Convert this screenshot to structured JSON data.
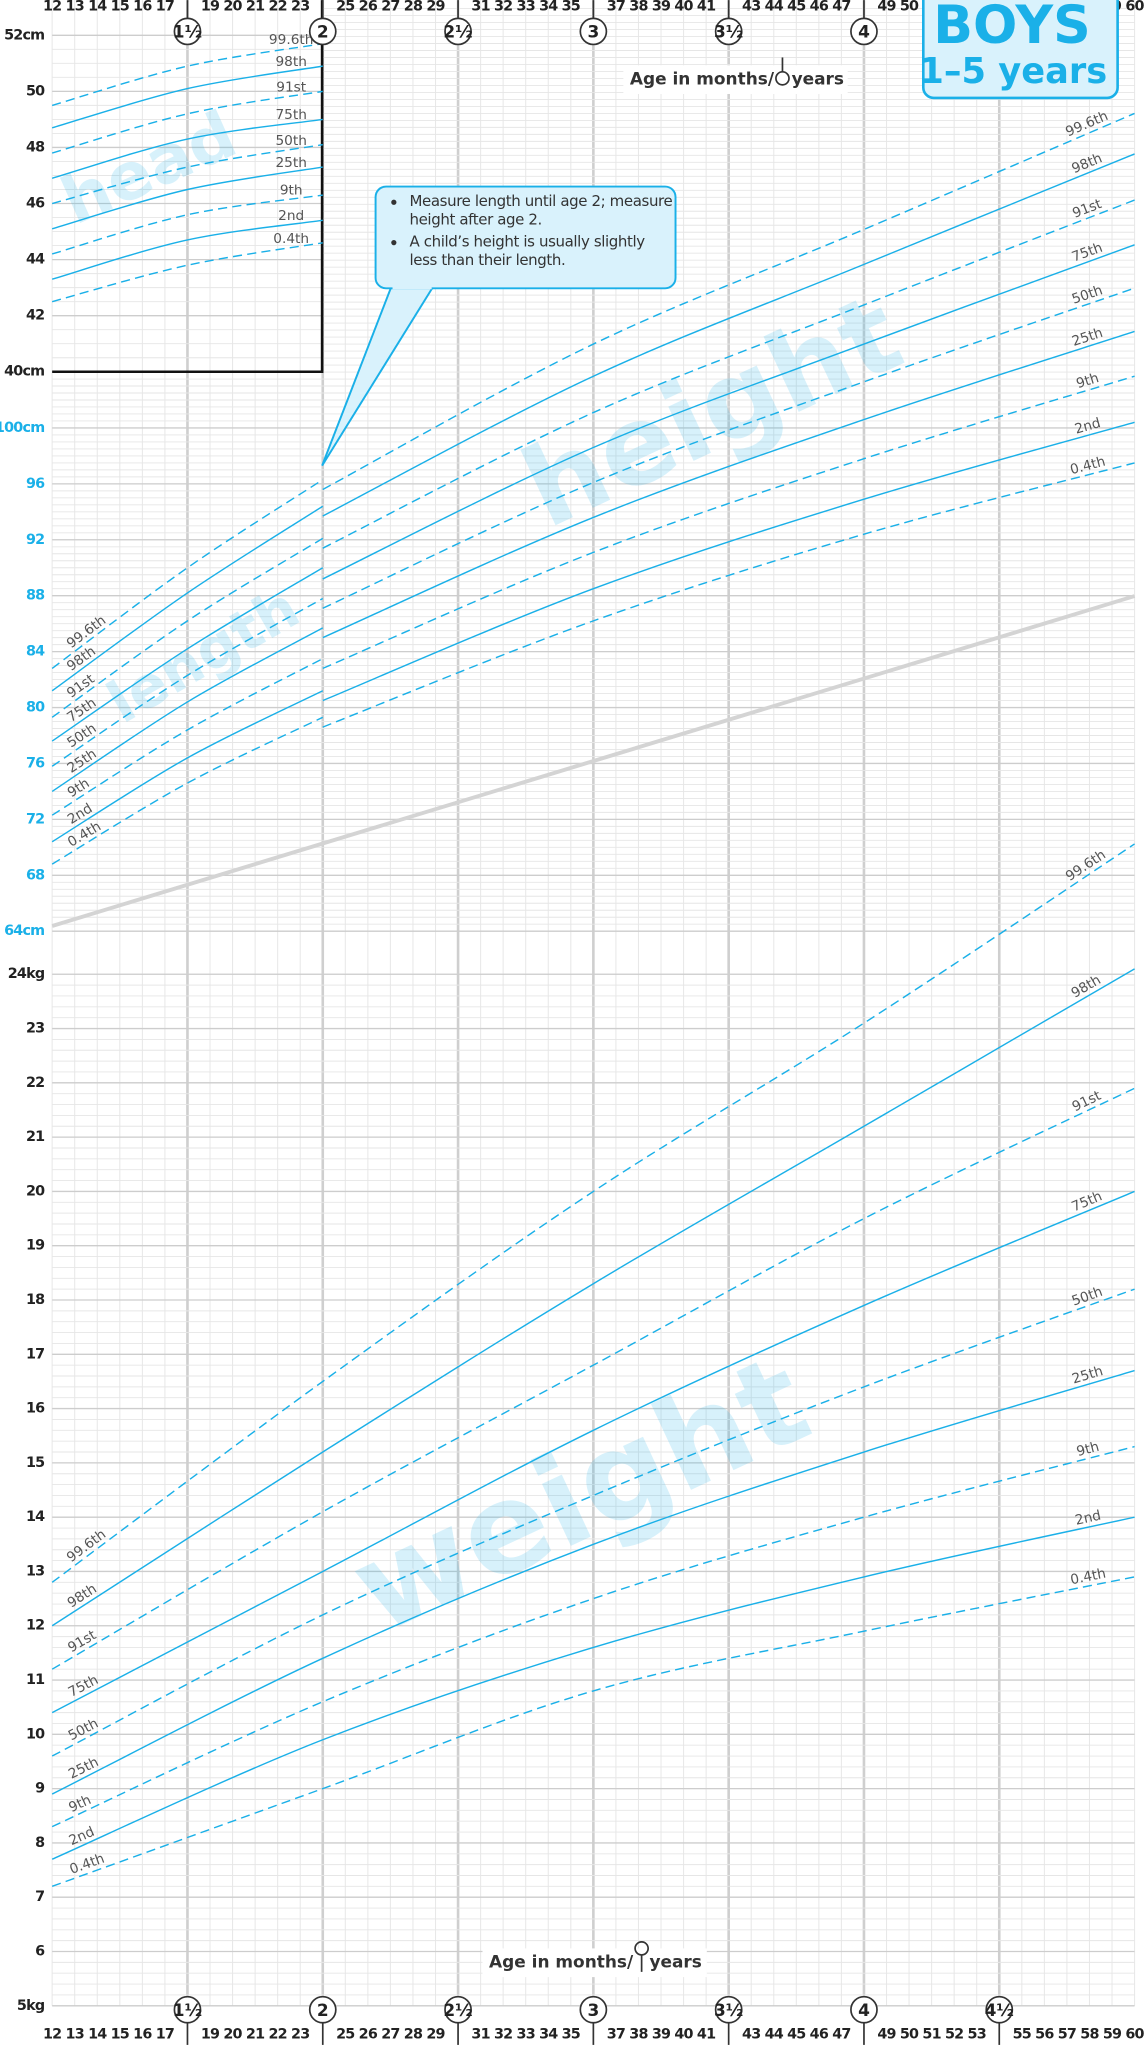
{
  "title": "BOYS",
  "subtitle": "1–5 years",
  "x_label_parts": [
    "Age in months/",
    "years"
  ],
  "watermarks": [
    "head",
    "length",
    "height",
    "weight"
  ],
  "annotation": [
    "Measure length until age 2; measure height after age 2.",
    "A child’s height is usually slightly less than their length."
  ],
  "x_axis": {
    "xlim": [
      12,
      60
    ],
    "xticks": [
      12,
      13,
      14,
      15,
      16,
      17,
      19,
      20,
      21,
      22,
      23,
      25,
      26,
      27,
      28,
      29,
      31,
      32,
      33,
      34,
      35,
      37,
      38,
      39,
      40,
      41,
      43,
      44,
      45,
      46,
      47,
      49,
      50,
      51,
      52,
      53,
      55,
      56,
      57,
      58,
      59,
      60
    ],
    "year_ticks": [
      {
        "value": 18,
        "label": "1½"
      },
      {
        "value": 24,
        "label": "2"
      },
      {
        "value": 30,
        "label": "2½"
      },
      {
        "value": 36,
        "label": "3"
      },
      {
        "value": 42,
        "label": "3½"
      },
      {
        "value": 48,
        "label": "4"
      },
      {
        "value": 54,
        "label": "4½"
      }
    ]
  },
  "chart_data": [
    {
      "type": "line",
      "color": "#1ab0e8",
      "tick_color": "#222",
      "x": [
        12,
        18,
        24
      ],
      "ylim": [
        40,
        52
      ],
      "yticks": [
        {
          "value": 40,
          "label": "40cm"
        },
        42,
        44,
        46,
        48,
        50,
        {
          "value": 52,
          "label": "52cm"
        }
      ],
      "series": [
        {
          "name": "99.6th",
          "dashed": true,
          "values": [
            49.5,
            50.9,
            51.7
          ]
        },
        {
          "name": "98th",
          "dashed": false,
          "values": [
            48.7,
            50.1,
            50.9
          ]
        },
        {
          "name": "91st",
          "dashed": true,
          "values": [
            47.8,
            49.2,
            50.0
          ]
        },
        {
          "name": "75th",
          "dashed": false,
          "values": [
            46.9,
            48.3,
            49.0
          ]
        },
        {
          "name": "50th",
          "dashed": true,
          "values": [
            46.0,
            47.3,
            48.1
          ]
        },
        {
          "name": "25th",
          "dashed": false,
          "values": [
            45.1,
            46.5,
            47.3
          ]
        },
        {
          "name": "9th",
          "dashed": true,
          "values": [
            44.2,
            45.6,
            46.3
          ]
        },
        {
          "name": "2nd",
          "dashed": false,
          "values": [
            43.3,
            44.7,
            45.4
          ]
        },
        {
          "name": "0.4th",
          "dashed": true,
          "values": [
            42.5,
            43.8,
            44.6
          ]
        }
      ]
    },
    {
      "type": "line",
      "color": "#1ab0e8",
      "tick_color": "#1ab0e8",
      "x": [
        12,
        18,
        24
      ],
      "ylim": [
        64,
        130
      ],
      "yticks": [
        {
          "value": 64,
          "label": "64cm"
        },
        68,
        72,
        76,
        80,
        84,
        88,
        92,
        96,
        {
          "value": 100,
          "label": "100cm"
        }
      ],
      "series": [
        {
          "name": "99.6th",
          "dashed": true,
          "values": [
            82.8,
            90.0,
            96.3
          ]
        },
        {
          "name": "98th",
          "dashed": false,
          "values": [
            81.2,
            88.2,
            94.4
          ]
        },
        {
          "name": "91st",
          "dashed": true,
          "values": [
            79.3,
            86.2,
            92.1
          ]
        },
        {
          "name": "75th",
          "dashed": false,
          "values": [
            77.6,
            84.2,
            90.0
          ]
        },
        {
          "name": "50th",
          "dashed": true,
          "values": [
            75.8,
            82.3,
            87.8
          ]
        },
        {
          "name": "25th",
          "dashed": false,
          "values": [
            74.0,
            80.4,
            85.7
          ]
        },
        {
          "name": "9th",
          "dashed": true,
          "values": [
            72.3,
            78.4,
            83.5
          ]
        },
        {
          "name": "2nd",
          "dashed": false,
          "values": [
            70.4,
            76.4,
            81.2
          ]
        },
        {
          "name": "0.4th",
          "dashed": true,
          "values": [
            68.8,
            74.6,
            79.3
          ]
        }
      ]
    },
    {
      "type": "line",
      "color": "#1ab0e8",
      "x": [
        24,
        36,
        48,
        60
      ],
      "ylim": [
        64,
        130
      ],
      "series": [
        {
          "name": "99.6th",
          "dashed": true,
          "values": [
            95.6,
            106.0,
            114.2,
            122.5
          ]
        },
        {
          "name": "98th",
          "dashed": false,
          "values": [
            93.7,
            103.7,
            111.7,
            119.6
          ]
        },
        {
          "name": "91st",
          "dashed": true,
          "values": [
            91.4,
            101.1,
            108.8,
            116.3
          ]
        },
        {
          "name": "75th",
          "dashed": false,
          "values": [
            89.2,
            98.6,
            106.0,
            113.1
          ]
        },
        {
          "name": "50th",
          "dashed": true,
          "values": [
            87.1,
            96.1,
            103.3,
            110.0
          ]
        },
        {
          "name": "25th",
          "dashed": false,
          "values": [
            85.0,
            93.6,
            100.6,
            106.9
          ]
        },
        {
          "name": "9th",
          "dashed": true,
          "values": [
            82.8,
            91.1,
            97.8,
            103.7
          ]
        },
        {
          "name": "2nd",
          "dashed": false,
          "values": [
            80.5,
            88.5,
            94.9,
            100.4
          ]
        },
        {
          "name": "0.4th",
          "dashed": true,
          "values": [
            78.6,
            86.2,
            92.4,
            97.5
          ]
        }
      ]
    },
    {
      "type": "line",
      "color": "#1ab0e8",
      "tick_color": "#222",
      "x": [
        12,
        24,
        36,
        48,
        60
      ],
      "ylim": [
        5,
        24
      ],
      "yticks": [
        {
          "value": 5,
          "label": "5kg"
        },
        6,
        7,
        8,
        9,
        10,
        11,
        12,
        13,
        14,
        15,
        16,
        17,
        18,
        19,
        20,
        21,
        22,
        23,
        {
          "value": 24,
          "label": "24kg"
        }
      ],
      "series": [
        {
          "name": "99.6th",
          "dashed": true,
          "values": [
            12.8,
            16.5,
            20.0,
            23.1,
            26.4
          ]
        },
        {
          "name": "98th",
          "dashed": false,
          "values": [
            12.0,
            15.2,
            18.3,
            21.2,
            24.1
          ]
        },
        {
          "name": "91st",
          "dashed": true,
          "values": [
            11.2,
            14.1,
            16.8,
            19.5,
            21.9
          ]
        },
        {
          "name": "75th",
          "dashed": false,
          "values": [
            10.4,
            13.0,
            15.6,
            17.9,
            20.0
          ]
        },
        {
          "name": "50th",
          "dashed": true,
          "values": [
            9.6,
            12.2,
            14.4,
            16.4,
            18.2
          ]
        },
        {
          "name": "25th",
          "dashed": false,
          "values": [
            8.9,
            11.4,
            13.5,
            15.2,
            16.7
          ]
        },
        {
          "name": "9th",
          "dashed": true,
          "values": [
            8.3,
            10.6,
            12.5,
            14.0,
            15.3
          ]
        },
        {
          "name": "2nd",
          "dashed": false,
          "values": [
            7.7,
            9.9,
            11.6,
            12.9,
            14.0
          ]
        },
        {
          "name": "0.4th",
          "dashed": true,
          "values": [
            7.2,
            9.0,
            10.8,
            11.9,
            12.9
          ]
        }
      ]
    }
  ]
}
